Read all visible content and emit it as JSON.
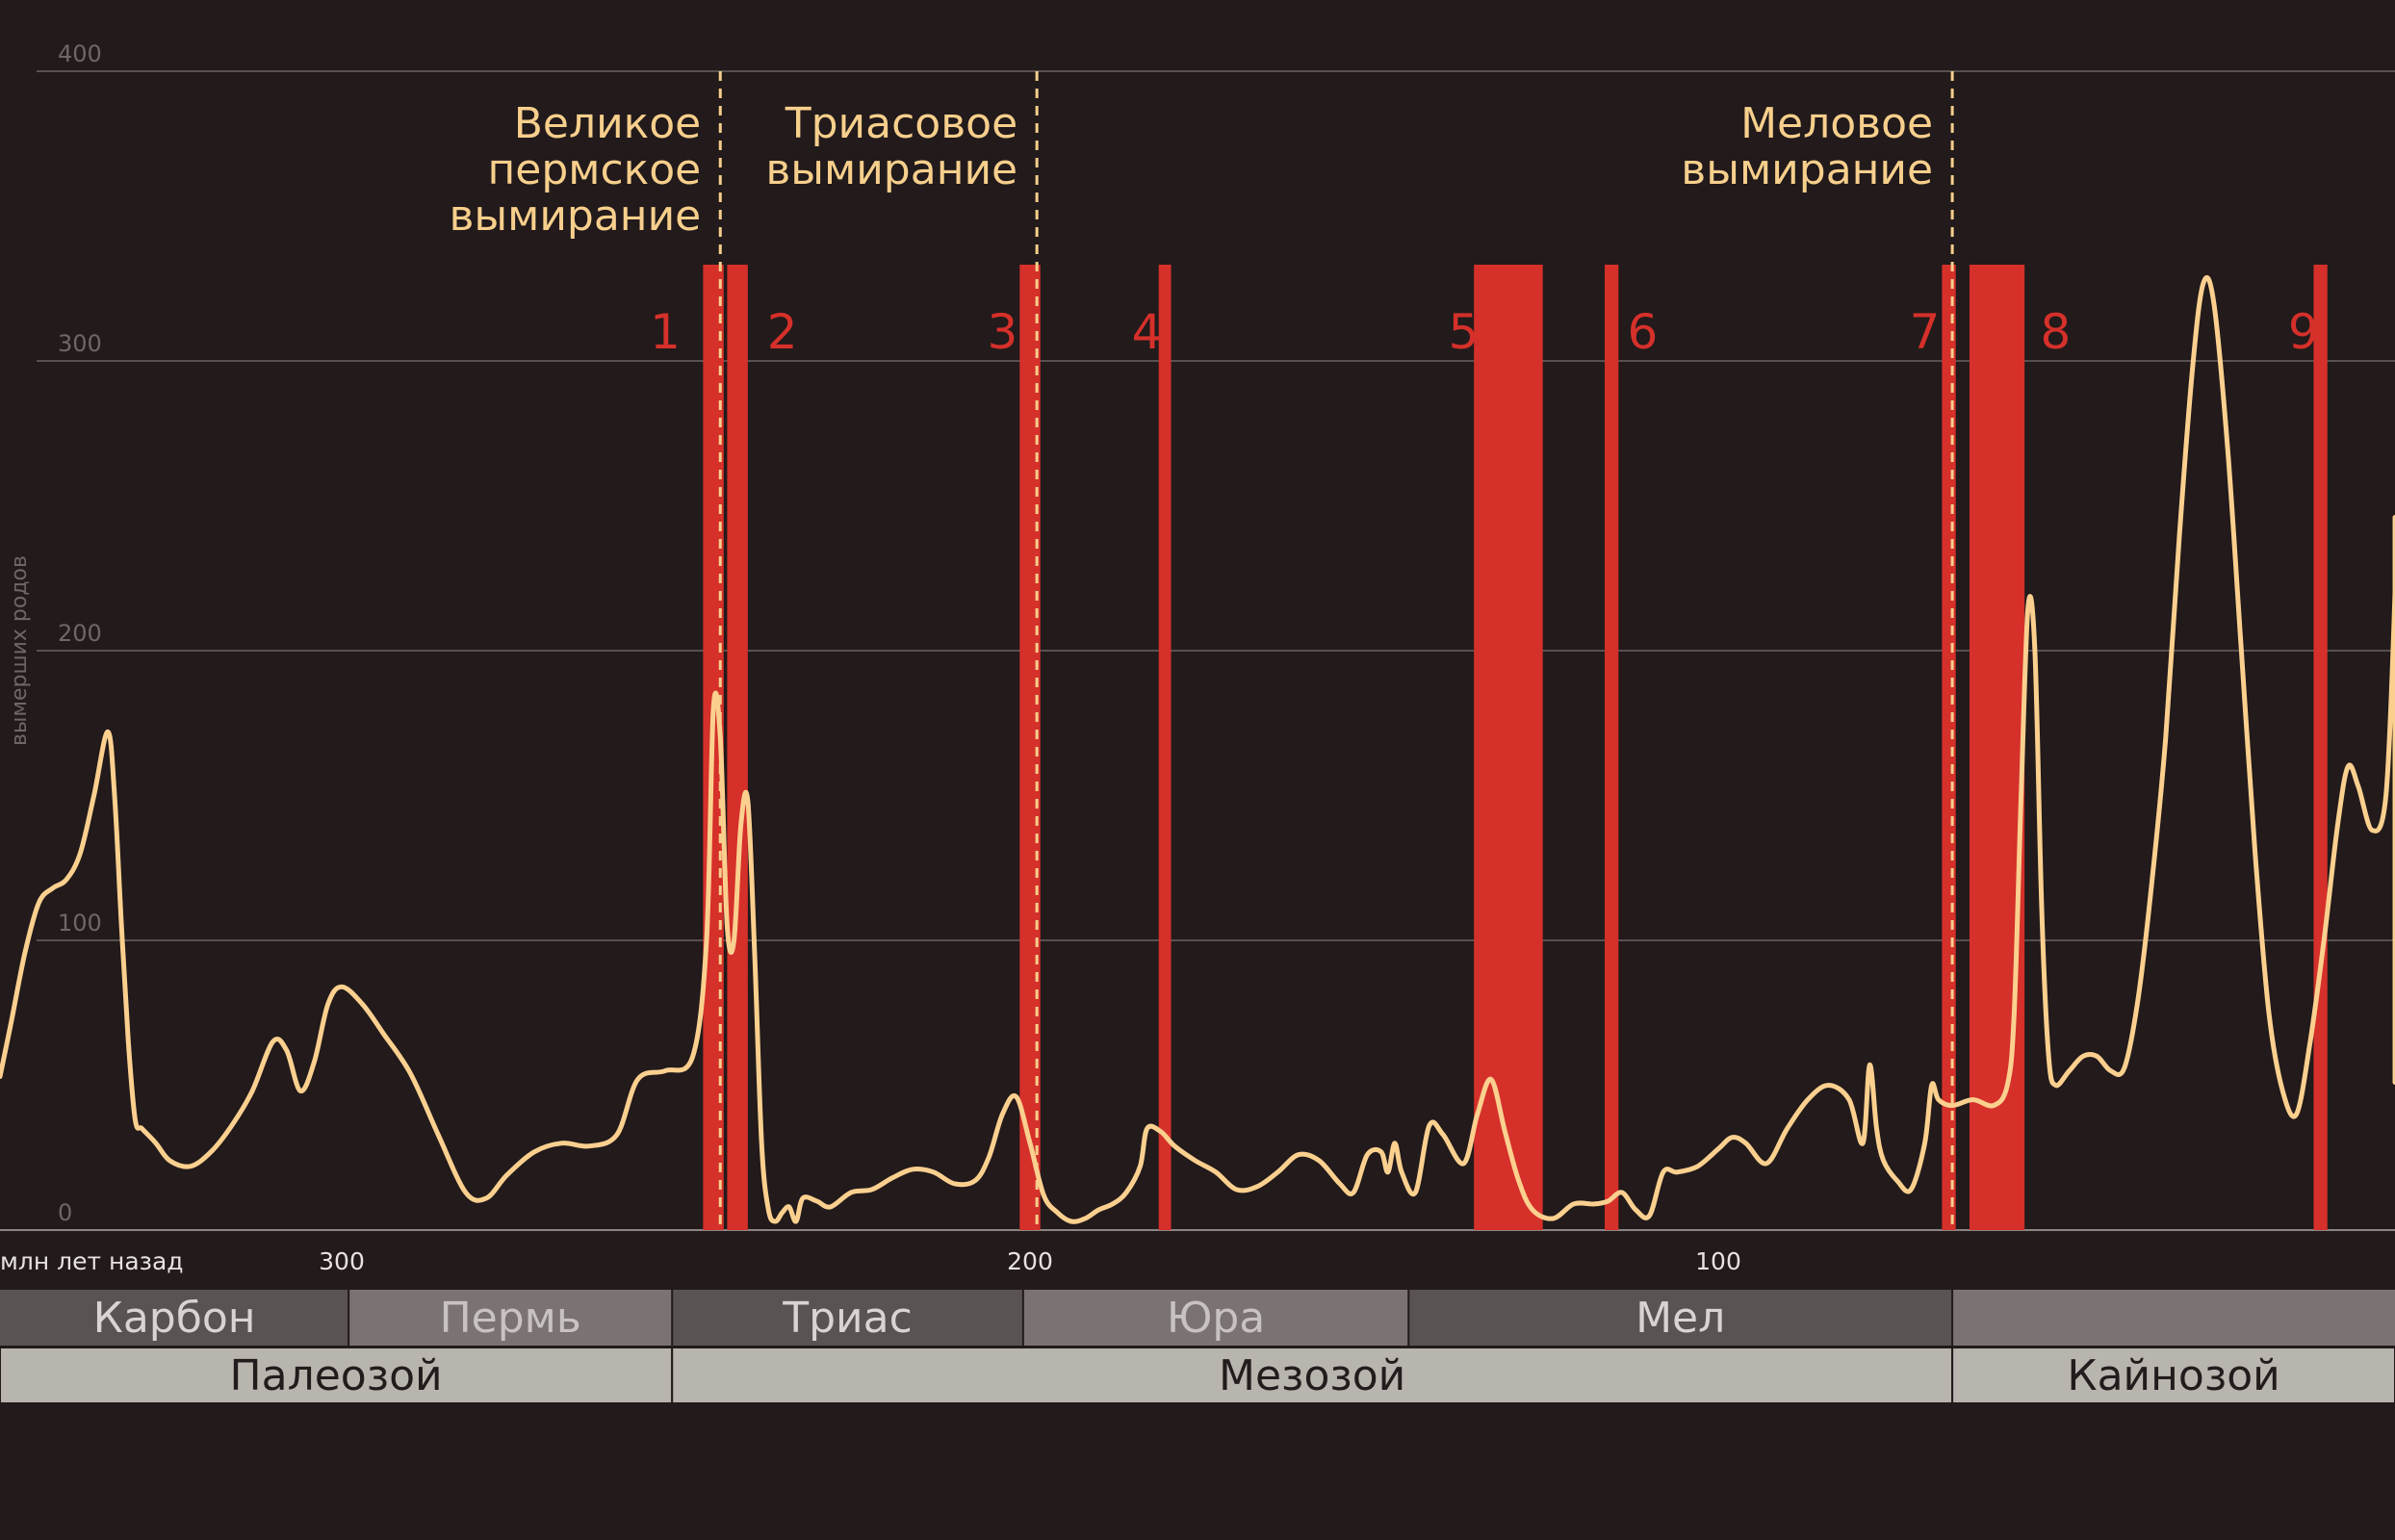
{
  "chart_data": {
    "type": "line",
    "ylabel": "вымерших родов",
    "xlabel": "млн лет назад",
    "ylim": [
      0,
      400
    ],
    "yticks": [
      "400",
      "300",
      "200",
      "100",
      "0"
    ],
    "xlim": [
      350,
      0
    ],
    "xticks": [
      {
        "value": 300,
        "label": "300"
      },
      {
        "value": 200,
        "label": "200"
      },
      {
        "value": 100,
        "label": "100"
      }
    ],
    "grid": true,
    "series": [
      {
        "values": [
          [
            350,
            53
          ],
          [
            348,
            72
          ],
          [
            346,
            96
          ],
          [
            344,
            113
          ],
          [
            342,
            118
          ],
          [
            340,
            121
          ],
          [
            338,
            130
          ],
          [
            336,
            150
          ],
          [
            334,
            172
          ],
          [
            333,
            150
          ],
          [
            332,
            105
          ],
          [
            331,
            65
          ],
          [
            330,
            38
          ],
          [
            329,
            35
          ],
          [
            327,
            30
          ],
          [
            325,
            24
          ],
          [
            322,
            22
          ],
          [
            319,
            27
          ],
          [
            316,
            36
          ],
          [
            313,
            48
          ],
          [
            310,
            65
          ],
          [
            308,
            62
          ],
          [
            306,
            48
          ],
          [
            304,
            58
          ],
          [
            302,
            78
          ],
          [
            300,
            84
          ],
          [
            297,
            78
          ],
          [
            294,
            68
          ],
          [
            290,
            54
          ],
          [
            286,
            33
          ],
          [
            282,
            13
          ],
          [
            279,
            11
          ],
          [
            276,
            19
          ],
          [
            272,
            27
          ],
          [
            268,
            30
          ],
          [
            264,
            29
          ],
          [
            260,
            33
          ],
          [
            257,
            52
          ],
          [
            253,
            55
          ],
          [
            249,
            60
          ],
          [
            247,
            100
          ],
          [
            246,
            180
          ],
          [
            245,
            170
          ],
          [
            244,
            105
          ],
          [
            243,
            100
          ],
          [
            242,
            140
          ],
          [
            241,
            148
          ],
          [
            240,
            95
          ],
          [
            239,
            30
          ],
          [
            238,
            7
          ],
          [
            237,
            3
          ],
          [
            236,
            6
          ],
          [
            235,
            8
          ],
          [
            234,
            3
          ],
          [
            233,
            11
          ],
          [
            231,
            10
          ],
          [
            229,
            8
          ],
          [
            226,
            13
          ],
          [
            223,
            14
          ],
          [
            220,
            18
          ],
          [
            217,
            21
          ],
          [
            214,
            20
          ],
          [
            211,
            16
          ],
          [
            208,
            17
          ],
          [
            206,
            25
          ],
          [
            204,
            40
          ],
          [
            202,
            46
          ],
          [
            200,
            30
          ],
          [
            198,
            12
          ],
          [
            196,
            6
          ],
          [
            194,
            3
          ],
          [
            192,
            4
          ],
          [
            190,
            7
          ],
          [
            188,
            9
          ],
          [
            186,
            13
          ],
          [
            184,
            22
          ],
          [
            183,
            35
          ],
          [
            181,
            34
          ],
          [
            179,
            29
          ],
          [
            176,
            24
          ],
          [
            173,
            20
          ],
          [
            170,
            14
          ],
          [
            167,
            15
          ],
          [
            164,
            20
          ],
          [
            161,
            26
          ],
          [
            158,
            24
          ],
          [
            155,
            16
          ],
          [
            153,
            13
          ],
          [
            151,
            26
          ],
          [
            149,
            27
          ],
          [
            148,
            20
          ],
          [
            147,
            30
          ],
          [
            146,
            20
          ],
          [
            144,
            13
          ],
          [
            142,
            36
          ],
          [
            140,
            33
          ],
          [
            137,
            23
          ],
          [
            135,
            40
          ],
          [
            133,
            52
          ],
          [
            131,
            34
          ],
          [
            129,
            17
          ],
          [
            127,
            7
          ],
          [
            124,
            4
          ],
          [
            121,
            9
          ],
          [
            118,
            9
          ],
          [
            116,
            10
          ],
          [
            114,
            13
          ],
          [
            112,
            7
          ],
          [
            110,
            5
          ],
          [
            108,
            20
          ],
          [
            106,
            20
          ],
          [
            103,
            22
          ],
          [
            100,
            28
          ],
          [
            98,
            32
          ],
          [
            96,
            30
          ],
          [
            93,
            23
          ],
          [
            90,
            35
          ],
          [
            87,
            45
          ],
          [
            84,
            50
          ],
          [
            81,
            45
          ],
          [
            79,
            30
          ],
          [
            78,
            57
          ],
          [
            77,
            35
          ],
          [
            76,
            24
          ],
          [
            74,
            17
          ],
          [
            72,
            14
          ],
          [
            70,
            30
          ],
          [
            69,
            50
          ],
          [
            68,
            45
          ],
          [
            66,
            43
          ],
          [
            63,
            45
          ],
          [
            60,
            43
          ],
          [
            58,
            50
          ],
          [
            57,
            75
          ],
          [
            56,
            150
          ],
          [
            55,
            215
          ],
          [
            54,
            200
          ],
          [
            53,
            110
          ],
          [
            52,
            60
          ],
          [
            51,
            50
          ],
          [
            49,
            55
          ],
          [
            47,
            60
          ],
          [
            45,
            60
          ],
          [
            43,
            55
          ],
          [
            41,
            56
          ],
          [
            39,
            80
          ],
          [
            37,
            120
          ],
          [
            35,
            170
          ],
          [
            33,
            240
          ],
          [
            31,
            300
          ],
          [
            29.5,
            327
          ],
          [
            28,
            320
          ],
          [
            26,
            270
          ],
          [
            24,
            200
          ],
          [
            22,
            130
          ],
          [
            20,
            75
          ],
          [
            18,
            48
          ],
          [
            16,
            40
          ],
          [
            14,
            65
          ],
          [
            12,
            100
          ],
          [
            10,
            140
          ],
          [
            8.5,
            160
          ],
          [
            7,
            153
          ],
          [
            5,
            138
          ],
          [
            3,
            150
          ],
          [
            1.5,
            220
          ],
          [
            0.5,
            246
          ],
          [
            -1,
            220
          ],
          [
            -2,
            130
          ],
          [
            -3,
            51
          ]
        ]
      }
    ],
    "bands": [
      {
        "label": "1",
        "from": 247.5,
        "to": 244.5
      },
      {
        "label": "",
        "from": 244.0,
        "to": 241.0
      },
      {
        "label": "2",
        "from": null,
        "to": null
      },
      {
        "label": "3",
        "from": 201.5,
        "to": 198.5
      },
      {
        "label": "4",
        "from": 181.3,
        "to": 179.5
      },
      {
        "label": "5",
        "from": 135.5,
        "to": 125.5
      },
      {
        "label": "6",
        "from": 116.5,
        "to": 114.5
      },
      {
        "label": "7",
        "from": 67.5,
        "to": 65.5
      },
      {
        "label": "8",
        "from": 63.5,
        "to": 55.5
      },
      {
        "label": "9",
        "from": 13.5,
        "to": 11.5
      }
    ],
    "band_label_positions": [
      {
        "label": "1",
        "x": 253
      },
      {
        "label": "2",
        "x": 236
      },
      {
        "label": "3",
        "x": 204
      },
      {
        "label": "4",
        "x": 183
      },
      {
        "label": "5",
        "x": 137
      },
      {
        "label": "6",
        "x": 111
      },
      {
        "label": "7",
        "x": 70
      },
      {
        "label": "8",
        "x": 51
      },
      {
        "label": "9",
        "x": 15
      }
    ],
    "events": [
      {
        "x": 245,
        "lines": [
          "Великое",
          "пермское",
          "вымирание"
        ]
      },
      {
        "x": 199,
        "lines": [
          "Триасовое",
          "вымирание"
        ]
      },
      {
        "x": 66,
        "lines": [
          "Меловое",
          "вымирание"
        ]
      }
    ],
    "periods": [
      {
        "label": "Карбон",
        "from": 350,
        "to": 299,
        "color": "#5a5353",
        "text_color": "#d9d4d3"
      },
      {
        "label": "Пермь",
        "from": 299,
        "to": 252,
        "color": "#7a7372",
        "text_color": "#c8c3c2"
      },
      {
        "label": "Триас",
        "from": 252,
        "to": 201,
        "color": "#5a5353",
        "text_color": "#d9d4d3"
      },
      {
        "label": "Юра",
        "from": 201,
        "to": 145,
        "color": "#7a7372",
        "text_color": "#c8c3c2"
      },
      {
        "label": "Мел",
        "from": 145,
        "to": 66,
        "color": "#5a5353",
        "text_color": "#d9d4d3"
      },
      {
        "label": "",
        "from": 66,
        "to": 0,
        "color": "#7a7372",
        "text_color": "#c8c3c2"
      }
    ],
    "eras": [
      {
        "label": "Палеозой",
        "from": 350,
        "to": 252
      },
      {
        "label": "Мезозой",
        "from": 252,
        "to": 66
      },
      {
        "label": "Кайнозой",
        "from": 66,
        "to": 0
      }
    ]
  },
  "colors": {
    "background": "#221a1b",
    "curve": "#fbd08f",
    "band": "#d5302a",
    "event": "#f7cf8c",
    "era_bar": "#b8b4ae"
  }
}
